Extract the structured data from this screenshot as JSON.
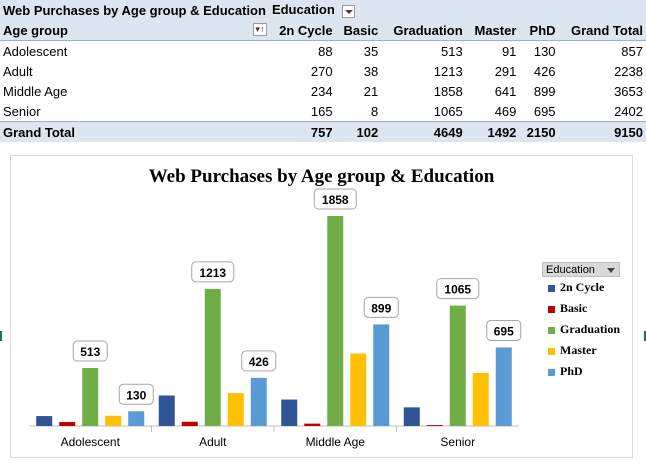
{
  "pivot": {
    "title": "Web Purchases by Age group & Education",
    "column_field": "Education",
    "row_field": "Age group",
    "columns": [
      "2n Cycle",
      "Basic",
      "Graduation",
      "Master",
      "PhD",
      "Grand Total"
    ],
    "rows": [
      {
        "label": "Adolescent",
        "values": [
          "88",
          "35",
          "513",
          "91",
          "130",
          "857"
        ]
      },
      {
        "label": "Adult",
        "values": [
          "270",
          "38",
          "1213",
          "291",
          "426",
          "2238"
        ]
      },
      {
        "label": "Middle Age",
        "values": [
          "234",
          "21",
          "1858",
          "641",
          "899",
          "3653"
        ]
      },
      {
        "label": "Senior",
        "values": [
          "165",
          "8",
          "1065",
          "469",
          "695",
          "2402"
        ]
      }
    ],
    "grand_total": {
      "label": "Grand Total",
      "values": [
        "757",
        "102",
        "4649",
        "1492",
        "2150",
        "9150"
      ]
    }
  },
  "legend": {
    "header": "Education"
  },
  "colors": {
    "2n Cycle": "#2f5597",
    "Basic": "#c00000",
    "Graduation": "#70ad47",
    "Master": "#ffc000",
    "PhD": "#5b9bd5"
  },
  "chart_data": {
    "type": "bar",
    "title": "Web Purchases by Age group & Education",
    "categories": [
      "Adolescent",
      "Adult",
      "Middle Age",
      "Senior"
    ],
    "series": [
      {
        "name": "2n Cycle",
        "values": [
          88,
          270,
          234,
          165
        ]
      },
      {
        "name": "Basic",
        "values": [
          35,
          38,
          21,
          8
        ]
      },
      {
        "name": "Graduation",
        "values": [
          513,
          1213,
          1858,
          1065
        ]
      },
      {
        "name": "Master",
        "values": [
          91,
          291,
          641,
          469
        ]
      },
      {
        "name": "PhD",
        "values": [
          130,
          426,
          899,
          695
        ]
      }
    ],
    "data_labels": [
      "Graduation",
      "PhD"
    ],
    "ylim": [
      0,
      1858
    ],
    "grid": false,
    "legend_position": "right"
  }
}
